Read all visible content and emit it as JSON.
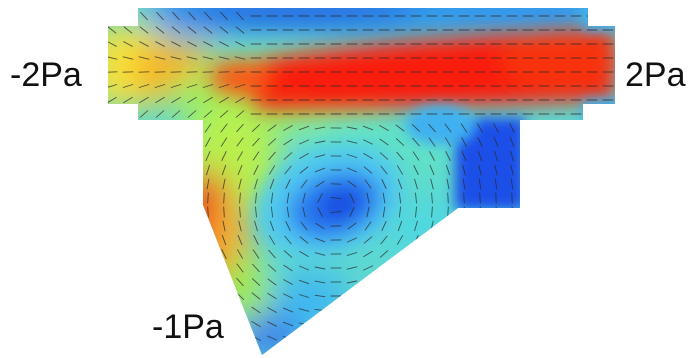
{
  "boundary_labels": {
    "left_inlet": "-2Pa",
    "right_outlet": "2Pa",
    "bottom_outlet": "-1Pa"
  },
  "colormap": {
    "low": "#1040d8",
    "mid_low": "#30c8f0",
    "mid": "#90f070",
    "mid_high": "#f8e840",
    "high": "#f82010"
  }
}
